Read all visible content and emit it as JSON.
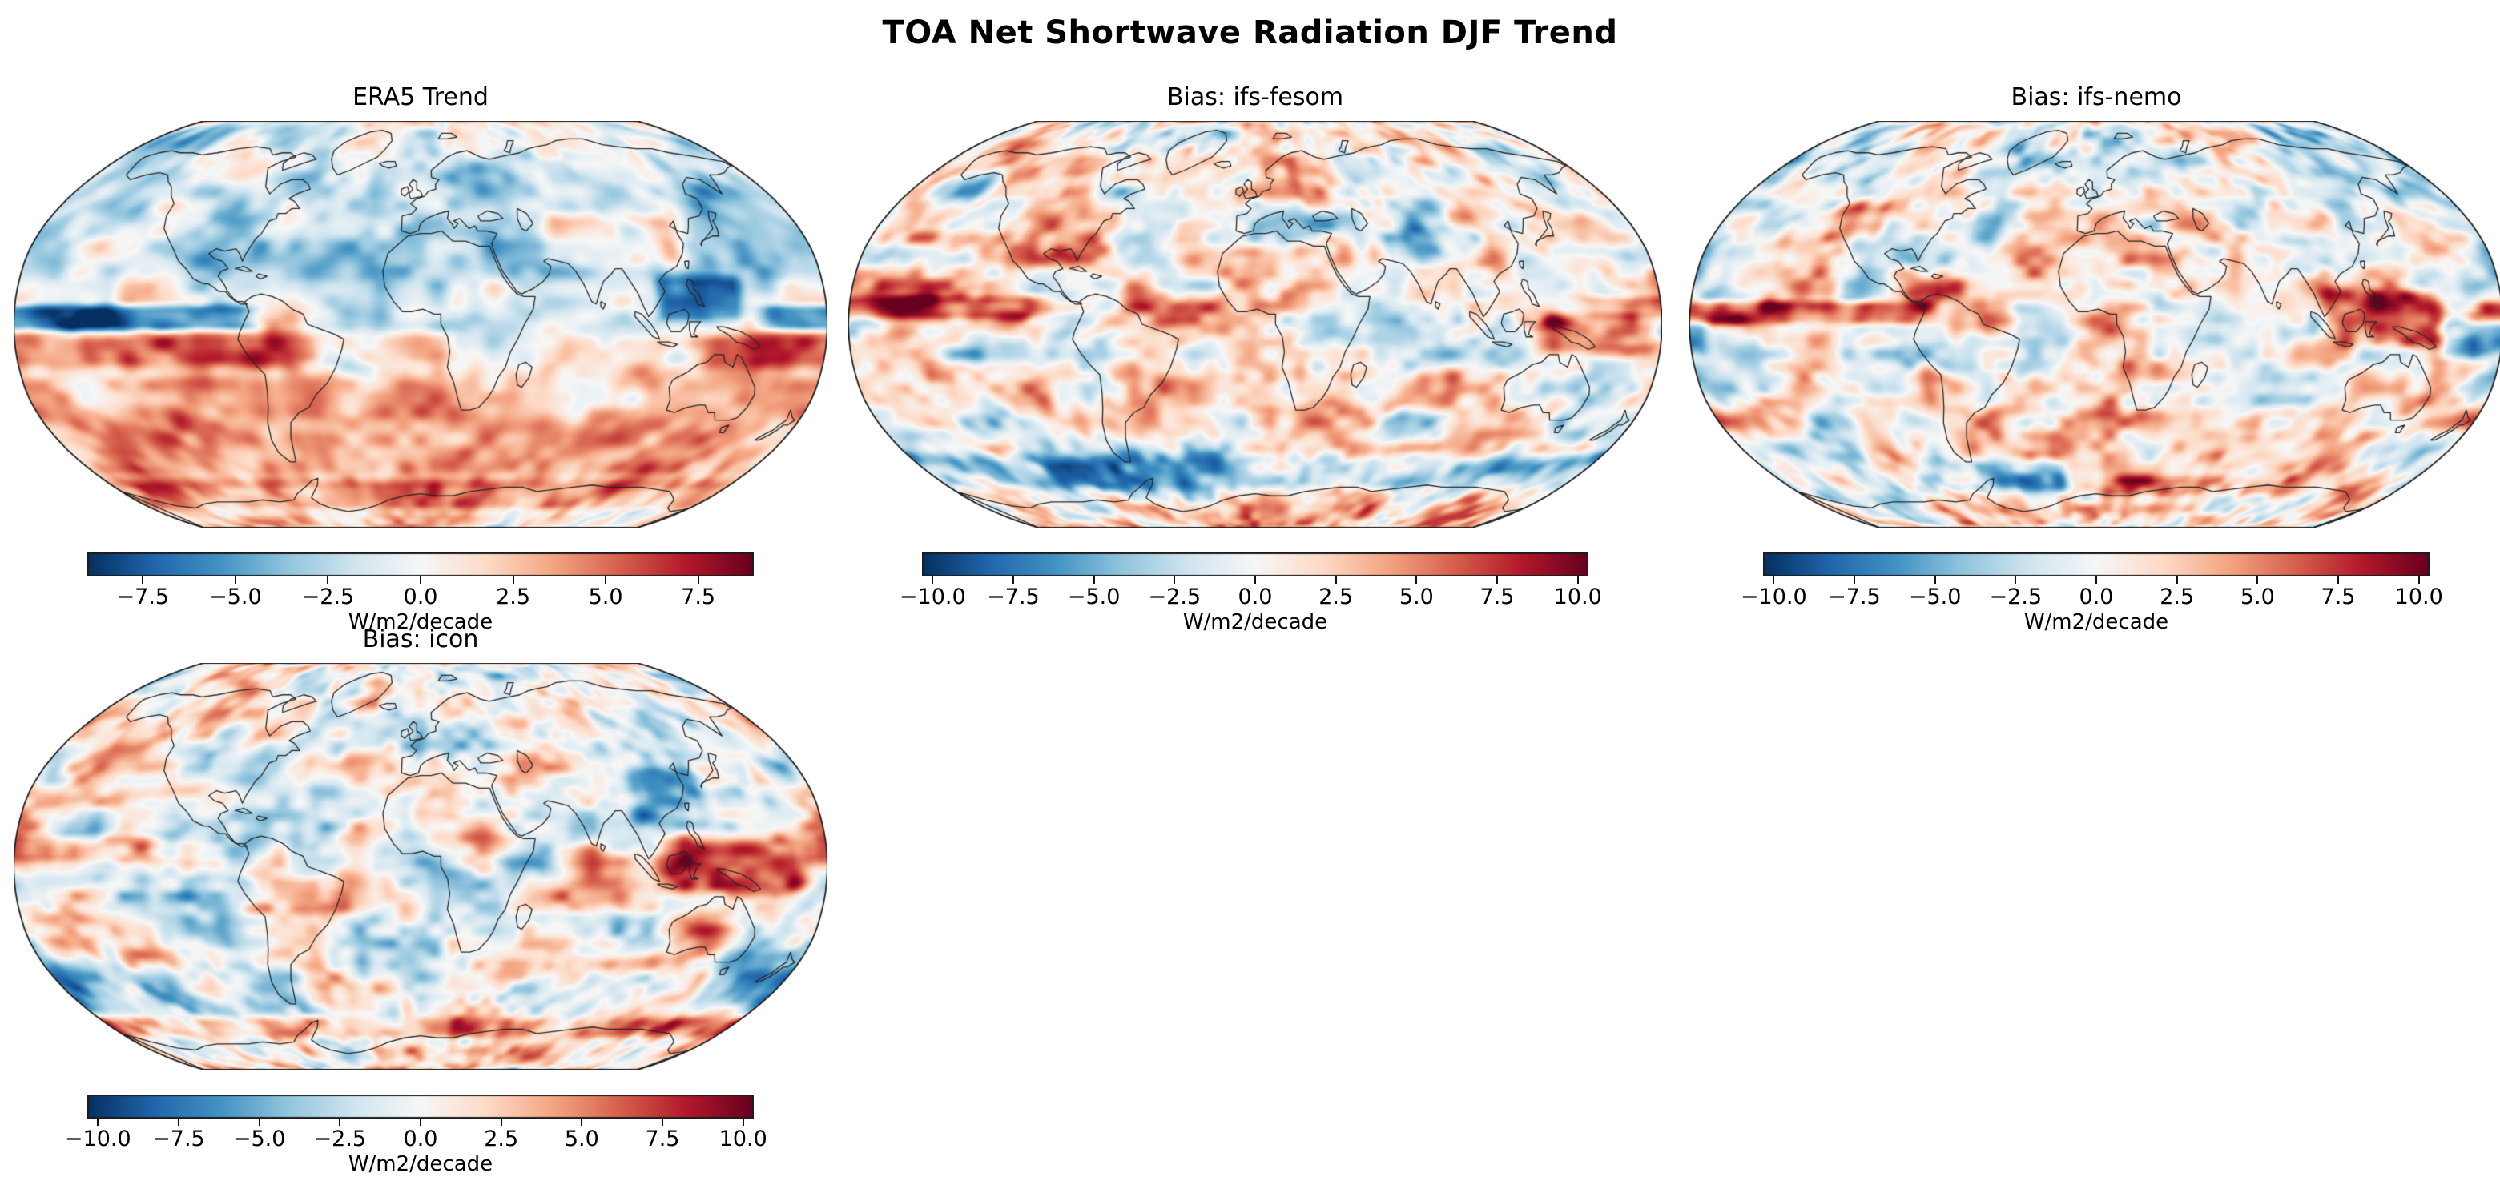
{
  "figure": {
    "title": "TOA Net Shortwave Radiation DJF Trend"
  },
  "style": {
    "colormap": "RdBu_r",
    "colormap_stops": [
      "#053061",
      "#2166ac",
      "#4393c3",
      "#92c5de",
      "#d1e5f0",
      "#f7f7f7",
      "#fddbc7",
      "#f4a582",
      "#d6604d",
      "#b2182b",
      "#67001f"
    ],
    "coastline_color": "#262626",
    "map_border_color": "#1c1c1c",
    "background": "#ffffff",
    "text_color": "#000000"
  },
  "chart_data": [
    {
      "id": "era5",
      "type": "heatmap",
      "title": "ERA5 Trend",
      "projection": "Robinson",
      "units": "W/m2/decade",
      "colorbar": {
        "vmin": -9,
        "vmax": 9,
        "ticks": [
          -7.5,
          -5.0,
          -2.5,
          0.0,
          2.5,
          5.0,
          7.5
        ],
        "tick_labels": [
          "−7.5",
          "−5.0",
          "−2.5",
          "0.0",
          "2.5",
          "5.0",
          "7.5"
        ],
        "label": "W/m2/decade"
      },
      "visible_features": [
        "Broad weak negative (light blue) shortwave trend over Northern Hemisphere oceans and continents",
        "Strong dark-blue negative band along the equatorial central/eastern Pacific",
        "Dark-blue pool over the Maritime Continent and Philippine Sea",
        "Red positive band just south of the equator across the Pacific",
        "Widespread positive (red) trend across Southern Hemisphere mid-latitudes",
        "Salmon-colored positive trend over Antarctic interior with dark red along the coast",
        "Scattered positive patches over central Asia and the Middle East"
      ],
      "render": {
        "seed": 7,
        "base": -0.3,
        "noise": {
          "amp": 2.9,
          "scale": 15,
          "detail": 1.5,
          "detailScale": 5.5
        },
        "bands": [
          {
            "lat": [
              16,
              88
            ],
            "v": -2.0,
            "s": 14
          },
          {
            "lat": [
              62,
              90
            ],
            "v": 1.1,
            "s": 18
          },
          {
            "lat": [
              -2.5,
              7.5
            ],
            "lon": [
              150,
              287
            ],
            "v": -7.6,
            "s": 5,
            "ls": 18
          },
          {
            "lat": [
              -17,
              -4
            ],
            "lon": [
              125,
              305
            ],
            "v": 5.4,
            "s": 7,
            "ls": 25
          },
          {
            "lat": [
              -15,
              -3
            ],
            "lon": [
              305,
              375
            ],
            "v": 2.6,
            "s": 6,
            "ls": 20
          },
          {
            "lat": [
              -63,
              -19
            ],
            "v": 3.7,
            "s": 12
          },
          {
            "lat": [
              -77,
              -63
            ],
            "v": 4.6,
            "s": 6
          },
          {
            "lat": [
              -90,
              -78
            ],
            "v": 2.4,
            "s": 6
          },
          {
            "lat": [
              1,
              19
            ],
            "lon": [
              106,
              143
            ],
            "v": -5.6,
            "s": 6,
            "ls": 8
          },
          {
            "lat": [
              23,
              43
            ],
            "lon": [
              58,
              120
            ],
            "v": 3.1,
            "s": 7,
            "ls": 10
          }
        ]
      }
    },
    {
      "id": "ifs-fesom",
      "type": "heatmap",
      "title": "Bias: ifs-fesom",
      "projection": "Robinson",
      "units": "W/m2/decade",
      "colorbar": {
        "vmin": -10.33,
        "vmax": 10.33,
        "ticks": [
          -10.0,
          -7.5,
          -5.0,
          -2.5,
          0.0,
          2.5,
          5.0,
          7.5,
          10.0
        ],
        "tick_labels": [
          "−10.0",
          "−7.5",
          "−5.0",
          "−2.5",
          "0.0",
          "2.5",
          "5.0",
          "7.5",
          "10.0"
        ],
        "label": "W/m2/decade"
      },
      "visible_features": [
        "Near-neutral (white) bias at high northern latitudes",
        "Dark red positive bias band along the north equatorial Pacific",
        "Strong dark red positive bias over New Guinea and the west Pacific warm pool",
        "Dark blue negative bias ring over the Southern Ocean near Antarctica",
        "Negative bias over the Tibetan Plateau",
        "Mottled red/blue bias elsewhere in the mid-latitudes"
      ],
      "render": {
        "seed": 23,
        "base": 0.55,
        "noise": {
          "amp": 4.6,
          "scale": 13,
          "detail": 2.2,
          "detailScale": 4.6
        },
        "bands": [
          {
            "lat": [
              58,
              90
            ],
            "v": -1.0,
            "s": 16
          },
          {
            "lat": [
              2,
              11
            ],
            "lon": [
              145,
              265
            ],
            "v": 5.2,
            "s": 4.5,
            "ls": 15
          },
          {
            "lat": [
              -12,
              3
            ],
            "lon": [
              127,
              178
            ],
            "v": 6.8,
            "s": 7,
            "ls": 12
          },
          {
            "lat": [
              -67,
              -52
            ],
            "v": -4.6,
            "s": 7
          },
          {
            "lat": [
              -90,
              -73
            ],
            "v": 1.6,
            "s": 6
          },
          {
            "lat": [
              26,
              40
            ],
            "lon": [
              68,
              106
            ],
            "v": -3.4,
            "s": 6,
            "ls": 8
          },
          {
            "lat": [
              -34,
              -19
            ],
            "lon": [
              15,
              95
            ],
            "v": 2.8,
            "s": 7,
            "ls": 15
          },
          {
            "lat": [
              5,
              14
            ],
            "lon": [
              300,
              345
            ],
            "v": 2.2,
            "s": 5,
            "ls": 10
          }
        ]
      }
    },
    {
      "id": "ifs-nemo",
      "type": "heatmap",
      "title": "Bias: ifs-nemo",
      "projection": "Robinson",
      "units": "W/m2/decade",
      "colorbar": {
        "vmin": -10.33,
        "vmax": 10.33,
        "ticks": [
          -10.0,
          -7.5,
          -5.0,
          -2.5,
          0.0,
          2.5,
          5.0,
          7.5,
          10.0
        ],
        "tick_labels": [
          "−10.0",
          "−7.5",
          "−5.0",
          "−2.5",
          "0.0",
          "2.5",
          "5.0",
          "7.5",
          "10.0"
        ],
        "label": "W/m2/decade"
      },
      "visible_features": [
        "Near-neutral bias at high northern latitudes",
        "Dark red positive bias band along the equatorial central/eastern Pacific",
        "Strong positive bias over Southeast Asia and the Maritime Continent",
        "Dark blue negative bias east of New Guinea",
        "Dark red positive bias over western North America",
        "Negative bias patches in the Weddell Sea sector with red along the East Antarctic coast",
        "Mottled red/blue bias across Southern Hemisphere oceans"
      ],
      "render": {
        "seed": 41,
        "base": 0.5,
        "noise": {
          "amp": 4.6,
          "scale": 13,
          "detail": 2.2,
          "detailScale": 4.6
        },
        "bands": [
          {
            "lat": [
              58,
              90
            ],
            "v": -0.9,
            "s": 16
          },
          {
            "lat": [
              0,
              9
            ],
            "lon": [
              168,
              288
            ],
            "v": 6.2,
            "s": 4.5,
            "ls": 12
          },
          {
            "lat": [
              -9,
              14
            ],
            "lon": [
              100,
              152
            ],
            "v": 5.8,
            "s": 7,
            "ls": 10
          },
          {
            "lat": [
              -13,
              2
            ],
            "lon": [
              153,
              188
            ],
            "v": -5.8,
            "s": 6,
            "ls": 8
          },
          {
            "lat": [
              33,
              48
            ],
            "lon": [
              232,
              258
            ],
            "v": 4.6,
            "s": 6,
            "ls": 8
          },
          {
            "lat": [
              -68,
              -54
            ],
            "lon": [
              265,
              345
            ],
            "v": -5.2,
            "s": 6,
            "ls": 15
          },
          {
            "lat": [
              -70,
              -61
            ],
            "lon": [
              0,
              125
            ],
            "v": 3.4,
            "s": 5,
            "ls": 15
          },
          {
            "lat": [
              -29,
              -14
            ],
            "lon": [
              8,
              62
            ],
            "v": 2.8,
            "s": 6,
            "ls": 12
          },
          {
            "lat": [
              20,
              34
            ],
            "lon": [
              68,
              100
            ],
            "v": -3.0,
            "s": 6,
            "ls": 8
          },
          {
            "lat": [
              -90,
              -75
            ],
            "v": 0.9,
            "s": 6
          }
        ]
      }
    },
    {
      "id": "icon",
      "type": "heatmap",
      "title": "Bias: icon",
      "projection": "Robinson",
      "units": "W/m2/decade",
      "colorbar": {
        "vmin": -10.33,
        "vmax": 10.33,
        "ticks": [
          -10.0,
          -7.5,
          -5.0,
          -2.5,
          0.0,
          2.5,
          5.0,
          7.5,
          10.0
        ],
        "tick_labels": [
          "−10.0",
          "−7.5",
          "−5.0",
          "−2.5",
          "0.0",
          "2.5",
          "5.0",
          "7.5",
          "10.0"
        ],
        "label": "W/m2/decade"
      },
      "visible_features": [
        "Near-neutral bias at high northern latitudes",
        "Very strong dark red positive bias over the Maritime Continent and west Pacific",
        "Dark blue negative bias over eastern China",
        "Negative (blue) band along the equatorial eastern Pacific",
        "Positive bias over tropical South America",
        "Blue negative patches over the Southern Ocean with red stripe along the Antarctic coast",
        "Mottled red/blue bias across mid-latitude oceans"
      ],
      "render": {
        "seed": 63,
        "base": 0.4,
        "noise": {
          "amp": 4.4,
          "scale": 13,
          "detail": 2.2,
          "detailScale": 4.6
        },
        "bands": [
          {
            "lat": [
              58,
              90
            ],
            "v": -0.8,
            "s": 16
          },
          {
            "lat": [
              -11,
              13
            ],
            "lon": [
              107,
              170
            ],
            "v": 7.2,
            "s": 8,
            "ls": 12
          },
          {
            "lat": [
              2,
              12
            ],
            "lon": [
              172,
              242
            ],
            "v": 3.8,
            "s": 4.5,
            "ls": 12
          },
          {
            "lat": [
              -7,
              6
            ],
            "lon": [
              212,
              282
            ],
            "v": -4.2,
            "s": 6,
            "ls": 12
          },
          {
            "lat": [
              17,
              40
            ],
            "lon": [
              96,
              130
            ],
            "v": -5.2,
            "s": 7,
            "ls": 9
          },
          {
            "lat": [
              -58,
              -40
            ],
            "lon": [
              150,
              305
            ],
            "v": -3.2,
            "s": 9,
            "ls": 20
          },
          {
            "lat": [
              -70,
              -61
            ],
            "v": 3.2,
            "s": 5
          },
          {
            "lat": [
              -90,
              -74
            ],
            "v": 1.4,
            "s": 6
          },
          {
            "lat": [
              -19,
              -4
            ],
            "lon": [
              285,
              335
            ],
            "v": 3.2,
            "s": 6,
            "ls": 12
          }
        ]
      }
    }
  ]
}
